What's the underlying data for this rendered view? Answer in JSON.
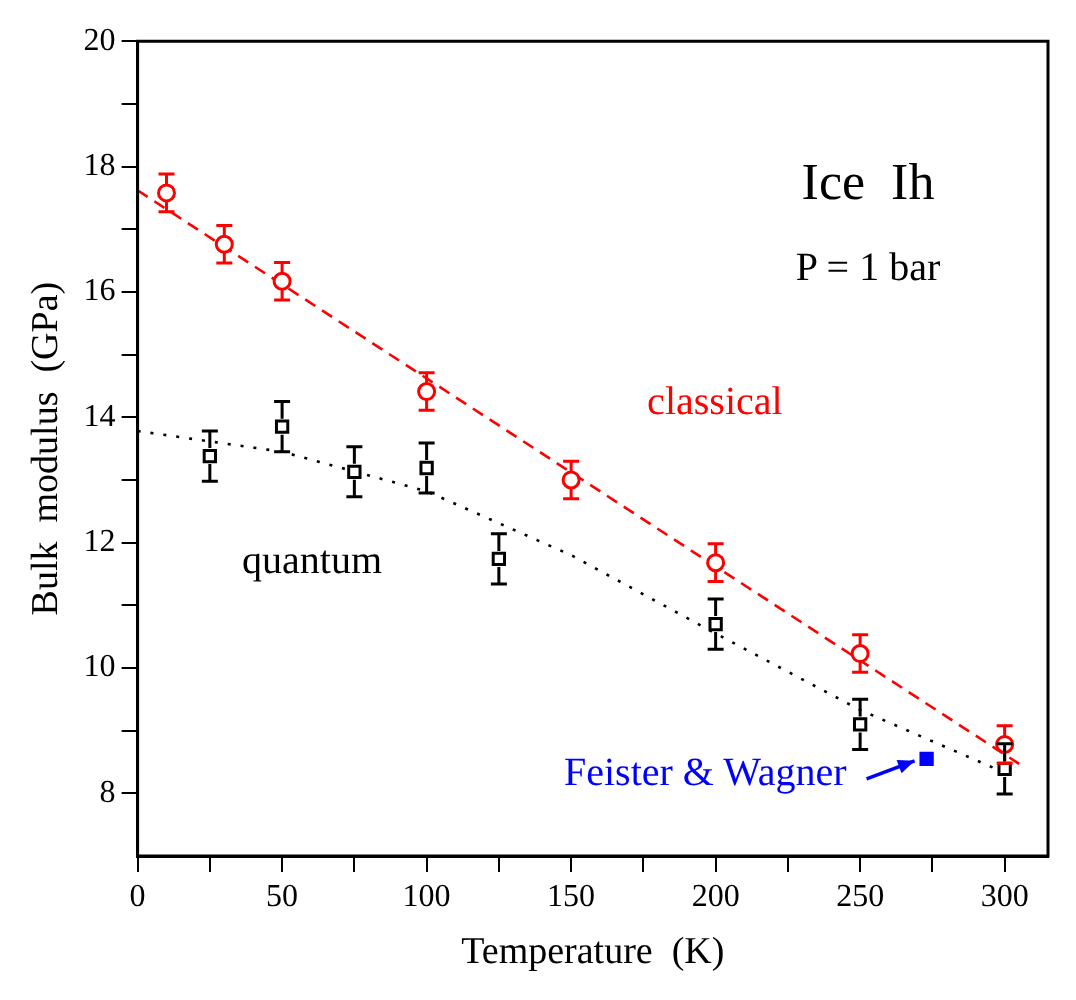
{
  "chart_data": {
    "type": "scatter",
    "xlabel": "Temperature  (K)",
    "ylabel": "Bulk  modulus  (GPa)",
    "xlim": [
      0,
      315
    ],
    "ylim": [
      7,
      20
    ],
    "xticks": [
      0,
      {
        "value": 25,
        "label": null
      },
      50,
      {
        "value": 75,
        "label": null
      },
      100,
      {
        "value": 125,
        "label": null
      },
      150,
      {
        "value": 175,
        "label": null
      },
      200,
      {
        "value": 225,
        "label": null
      },
      250,
      {
        "value": 275,
        "label": null
      },
      300
    ],
    "yticks": [
      8,
      {
        "value": 9,
        "label": null
      },
      10,
      {
        "value": 11,
        "label": null
      },
      12,
      {
        "value": 13,
        "label": null
      },
      14,
      {
        "value": 15,
        "label": null
      },
      16,
      {
        "value": 17,
        "label": null
      },
      18,
      {
        "value": 19,
        "label": null
      },
      20
    ],
    "grid": false,
    "legend": false,
    "annotations": [
      "Ice  Ih",
      "P = 1 bar",
      {
        "text": "Feister & Wagner",
        "x": 273,
        "y": 8.55
      }
    ],
    "series": [
      {
        "type": "line",
        "color": "#ff0000",
        "line_style": "dashed",
        "marker": "none",
        "x": [
          0,
          305
        ],
        "values": [
          17.62,
          8.47
        ]
      },
      {
        "type": "line",
        "color": "#000000",
        "line_style": "dotted",
        "marker": "none",
        "x": [
          0,
          50,
          100,
          150,
          200,
          250,
          300
        ],
        "values": [
          13.78,
          13.45,
          12.82,
          11.8,
          10.55,
          9.33,
          8.33
        ]
      },
      {
        "name": "classical",
        "type": "scatter",
        "color": "#ff0000",
        "marker": "circle",
        "x": [
          10,
          30,
          50,
          100,
          150,
          200,
          250,
          300
        ],
        "values": [
          17.58,
          16.76,
          16.17,
          14.41,
          13.0,
          11.68,
          10.23,
          8.78
        ],
        "errors": [
          0.3,
          0.3,
          0.3,
          0.3,
          0.3,
          0.3,
          0.3,
          0.3
        ]
      },
      {
        "name": "quantum",
        "type": "scatter",
        "color": "#000000",
        "marker": "square",
        "x": [
          25,
          50,
          75,
          100,
          125,
          200,
          250,
          300
        ],
        "values": [
          13.38,
          13.85,
          13.13,
          13.19,
          11.74,
          10.7,
          9.1,
          8.39
        ],
        "errors": [
          0.4,
          0.4,
          0.4,
          0.4,
          0.4,
          0.4,
          0.4,
          0.4
        ]
      },
      {
        "type": "scatter",
        "color": "#0000ff",
        "marker": "square",
        "x": [
          273
        ],
        "values": [
          8.55
        ]
      }
    ]
  }
}
